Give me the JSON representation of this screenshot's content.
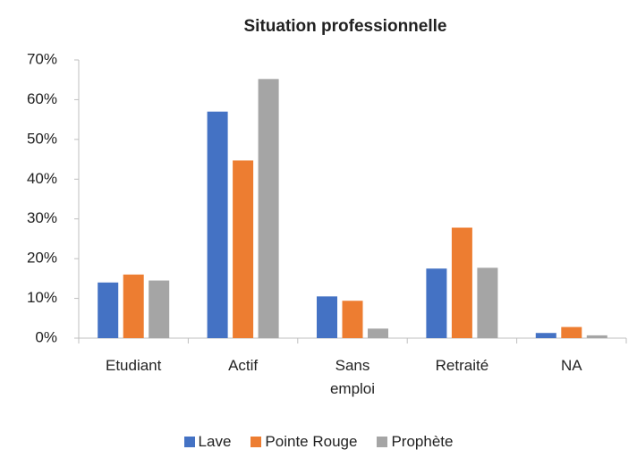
{
  "chart_data": {
    "type": "bar",
    "title": "Situation professionnelle",
    "categories": [
      "Etudiant",
      "Actif",
      "Sans emploi",
      "Retraité",
      "NA"
    ],
    "series": [
      {
        "name": "Lave",
        "color": "#4472c4",
        "values": [
          14,
          57,
          10.5,
          17.5,
          1.3
        ]
      },
      {
        "name": "Pointe Rouge",
        "color": "#ed7d31",
        "values": [
          16,
          44.7,
          9.4,
          27.8,
          2.8
        ]
      },
      {
        "name": "Prophète",
        "color": "#a5a5a5",
        "values": [
          14.5,
          65.2,
          2.4,
          17.7,
          0.7
        ]
      }
    ],
    "ylim": [
      0,
      70
    ],
    "yticks": [
      {
        "value": 0,
        "label": "0%"
      },
      {
        "value": 10,
        "label": "10%"
      },
      {
        "value": 20,
        "label": "20%"
      },
      {
        "value": 30,
        "label": "30%"
      },
      {
        "value": 40,
        "label": "40%"
      },
      {
        "value": 50,
        "label": "50%"
      },
      {
        "value": 60,
        "label": "60%"
      },
      {
        "value": 70,
        "label": "70%"
      }
    ],
    "grid": false,
    "legend": "bottom"
  }
}
